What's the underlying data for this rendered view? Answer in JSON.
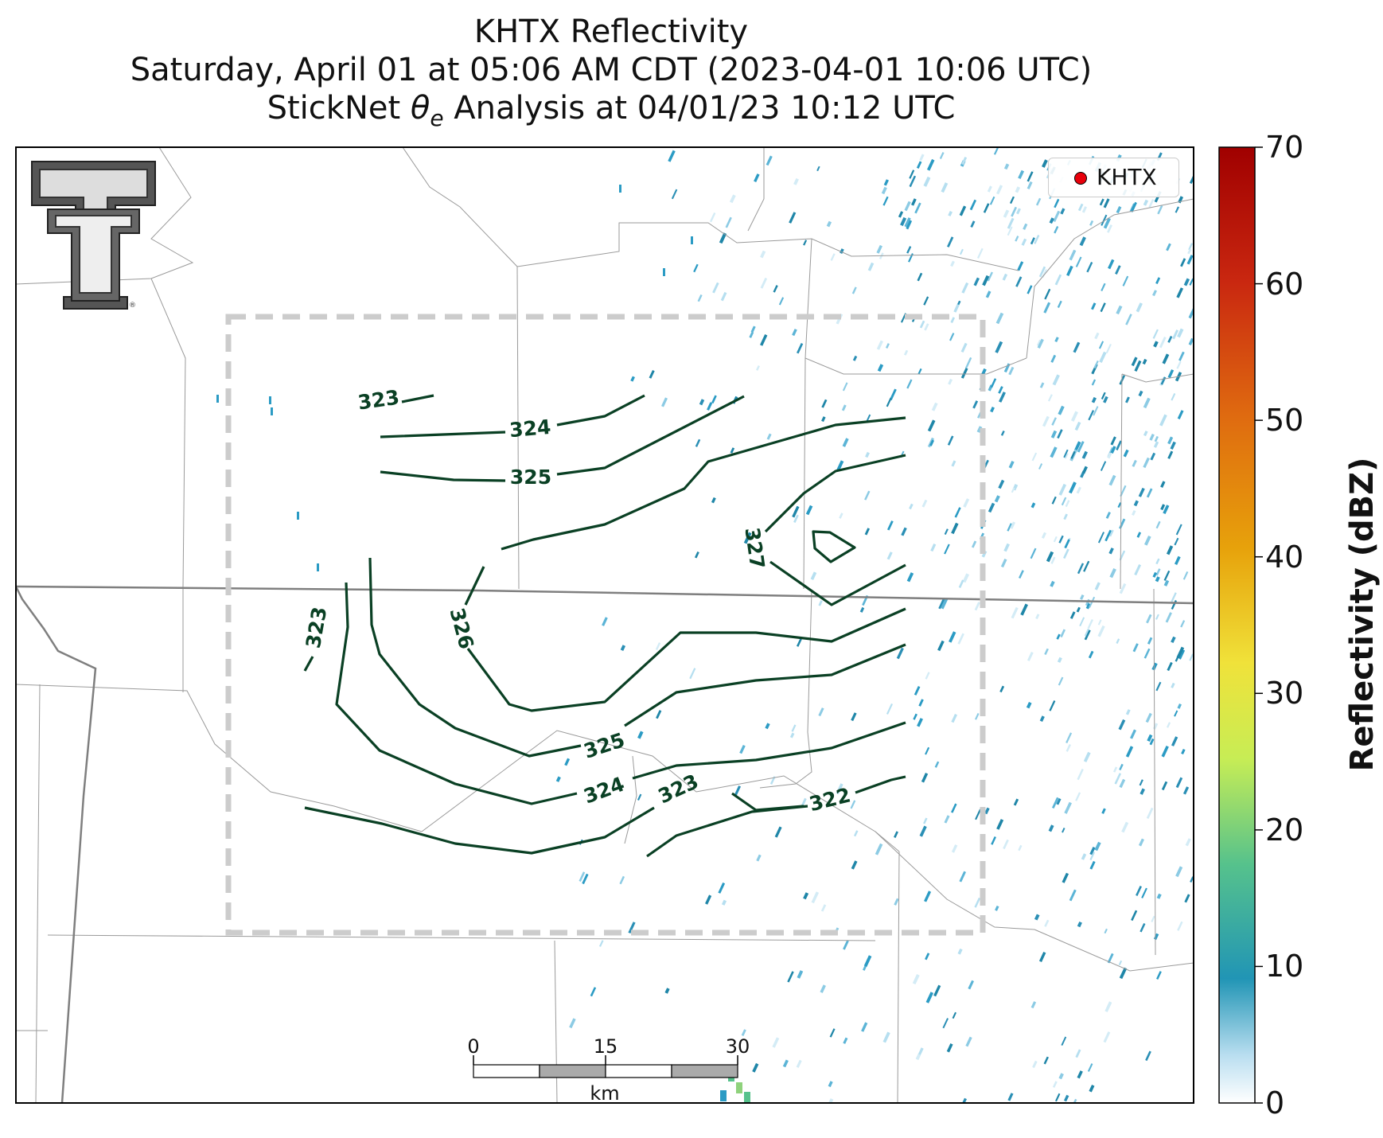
{
  "title": {
    "line1": "KHTX Reflectivity",
    "line2": "Saturday, April 01 at 05:06 AM CDT (2023-04-01 10:06 UTC)",
    "line3": "StickNet θe Analysis at 04/01/23 10:12 UTC"
  },
  "legend": {
    "label": "KHTX",
    "marker_color": "#e8000b"
  },
  "colorbar": {
    "title": "Reflectivity (dBZ)",
    "ticks": [
      "0",
      "10",
      "20",
      "30",
      "40",
      "50",
      "60",
      "70"
    ],
    "tick_values": [
      0,
      10,
      20,
      30,
      40,
      50,
      60,
      70
    ],
    "range": [
      0,
      70
    ]
  },
  "scale_bar": {
    "labels": [
      "0",
      "15",
      "30"
    ],
    "unit": "km"
  },
  "contours": {
    "color": "#0a4024",
    "labels": [
      "323",
      "324",
      "325",
      "326",
      "327",
      "323",
      "325",
      "324",
      "323",
      "322"
    ]
  },
  "colors": {
    "radar_echo": "#2b9bc4",
    "state_border": "#808080",
    "county_line": "#999999",
    "analysis_box": "#cccccc"
  },
  "logo": {
    "name": "texas-tech-double-t-logo",
    "registered_mark": "®"
  }
}
